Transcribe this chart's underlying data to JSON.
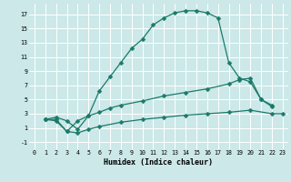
{
  "xlabel": "Humidex (Indice chaleur)",
  "bg_color": "#cce8e8",
  "grid_color": "#ffffff",
  "line_color": "#1a7a6a",
  "xlim": [
    -0.5,
    23.5
  ],
  "ylim": [
    -2,
    18.5
  ],
  "xticks": [
    0,
    1,
    2,
    3,
    4,
    5,
    6,
    7,
    8,
    9,
    10,
    11,
    12,
    13,
    14,
    15,
    16,
    17,
    18,
    19,
    20,
    21,
    22,
    23
  ],
  "yticks": [
    -1,
    1,
    3,
    5,
    7,
    9,
    11,
    13,
    15,
    17
  ],
  "line1_x": [
    1,
    2,
    3,
    4,
    5,
    6,
    7,
    8,
    9,
    10,
    11,
    12,
    13,
    14,
    15,
    16,
    17,
    18,
    19,
    20,
    21,
    22
  ],
  "line1_y": [
    2.2,
    2.5,
    2.0,
    0.8,
    2.7,
    6.2,
    8.2,
    10.2,
    12.2,
    13.5,
    15.5,
    16.5,
    17.2,
    17.5,
    17.5,
    17.2,
    16.5,
    10.2,
    8.0,
    7.5,
    5.0,
    4.2
  ],
  "line2_x": [
    1,
    2,
    3,
    4,
    5,
    6,
    7,
    8,
    10,
    12,
    14,
    16,
    18,
    19,
    20,
    21,
    22
  ],
  "line2_y": [
    2.2,
    2.2,
    0.5,
    2.0,
    2.7,
    3.2,
    3.8,
    4.2,
    4.8,
    5.5,
    6.0,
    6.5,
    7.2,
    7.8,
    8.0,
    5.0,
    4.0
  ],
  "line3_x": [
    1,
    2,
    3,
    4,
    5,
    6,
    8,
    10,
    12,
    14,
    16,
    18,
    20,
    22,
    23
  ],
  "line3_y": [
    2.2,
    2.0,
    0.5,
    0.3,
    0.8,
    1.2,
    1.8,
    2.2,
    2.5,
    2.8,
    3.0,
    3.2,
    3.5,
    3.0,
    3.0
  ]
}
